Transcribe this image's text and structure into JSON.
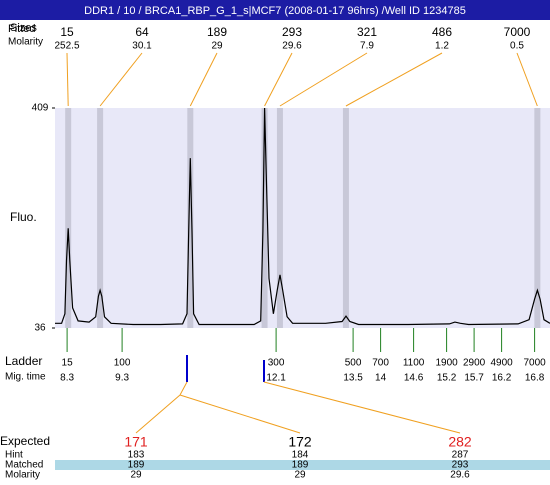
{
  "title": "DDR1 / 10 / BRCA1_RBP_G_1_s|MCF7 (2008-01-17 96hrs) /Well ID 1234785",
  "chart_data": {
    "type": "line",
    "ylabel": "Fluo.",
    "ylim": [
      36,
      409
    ],
    "yticks": [
      36,
      409
    ],
    "xlim": [
      8.08,
      17.08
    ],
    "color": "#000000",
    "x": [
      8.08,
      8.2,
      8.26,
      8.29,
      8.32,
      8.35,
      8.4,
      8.5,
      8.7,
      8.82,
      8.87,
      8.9,
      8.93,
      8.98,
      9.1,
      9.5,
      10.0,
      10.4,
      10.48,
      10.51,
      10.54,
      10.57,
      10.6,
      10.7,
      11.2,
      11.7,
      11.82,
      11.86,
      11.89,
      11.92,
      11.97,
      12.05,
      12.12,
      12.17,
      12.22,
      12.3,
      12.4,
      13.0,
      13.3,
      13.37,
      13.44,
      13.6,
      14.5,
      15.25,
      15.35,
      15.45,
      15.6,
      16.5,
      16.7,
      16.8,
      16.85,
      16.9,
      16.97,
      17.08
    ],
    "values": [
      44,
      44,
      60,
      150,
      205,
      150,
      70,
      48,
      46,
      55,
      90,
      100,
      90,
      55,
      44,
      42,
      42,
      43,
      60,
      200,
      324,
      200,
      60,
      42,
      42,
      42,
      48,
      200,
      409,
      300,
      120,
      60,
      100,
      126,
      100,
      55,
      44,
      44,
      47,
      56,
      47,
      42,
      42,
      43,
      46,
      44,
      42,
      43,
      50,
      85,
      100,
      85,
      50,
      44
    ]
  },
  "fitted": {
    "label_fitted": "Fitted",
    "label_sizes": "Sizes",
    "label_molarity": "Molarity",
    "sizes": [
      15,
      64,
      189,
      293,
      321,
      486,
      7000
    ],
    "molarity": [
      252.5,
      30.1,
      29,
      29.6,
      7.9,
      1.2,
      0.5
    ],
    "times": [
      8.32,
      8.9,
      10.54,
      11.89,
      12.17,
      13.37,
      16.85
    ]
  },
  "ladder": {
    "label": "Ladder",
    "time_label": "Mig. time",
    "sizes": [
      15,
      100,
      300,
      500,
      700,
      1100,
      1900,
      2900,
      4900,
      7000
    ],
    "times": [
      8.3,
      9.3,
      12.1,
      13.5,
      14,
      14.6,
      15.2,
      15.7,
      16.2,
      16.8
    ]
  },
  "match": {
    "label_expected": "Expected",
    "label_hint": "Hint",
    "label_matched": "Matched",
    "label_molarity": "Molarity",
    "expected": [
      171,
      172,
      282
    ],
    "expected_colors": [
      "#e02020",
      "#000000",
      "#e02020"
    ],
    "hint": [
      183,
      184,
      287
    ],
    "matched": [
      189,
      189,
      293
    ],
    "molarity": [
      29,
      29,
      29.6
    ]
  }
}
